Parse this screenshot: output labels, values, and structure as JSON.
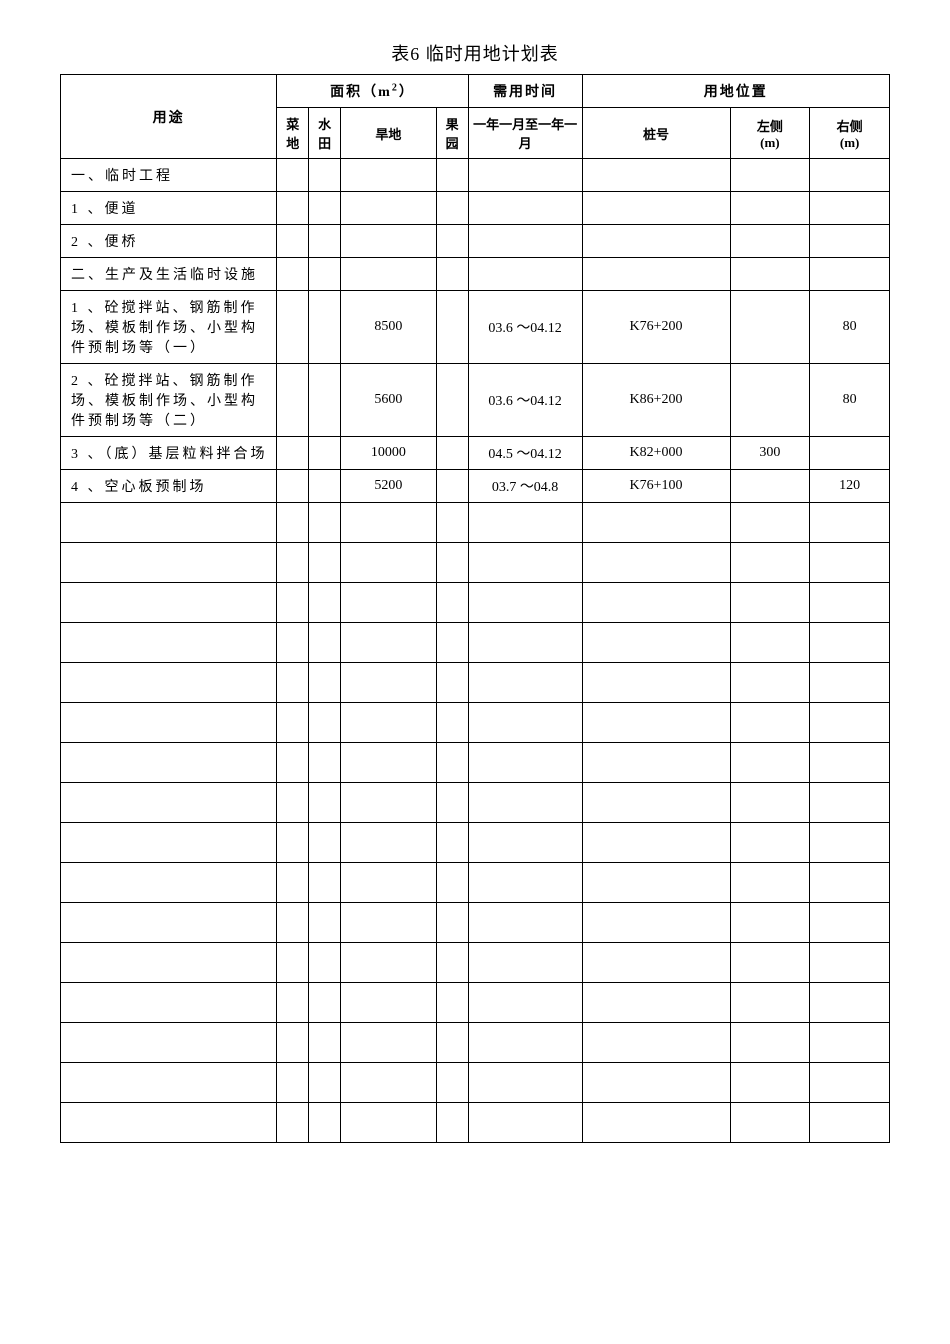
{
  "title": "表6 临时用地计划表",
  "headers": {
    "usage": "用途",
    "area": "面积（m²）",
    "time": "需用时间",
    "location": "用地位置",
    "cai": "菜地",
    "shui": "水田",
    "han": "旱地",
    "guo": "果园",
    "time_sub": "一年一月至一年一月",
    "pile": "桩号",
    "left": "左侧\n(m)",
    "right": "右侧\n(m)"
  },
  "rows": [
    {
      "usage": "一、临时工程"
    },
    {
      "usage": "1 、便道"
    },
    {
      "usage": "2 、便桥"
    },
    {
      "usage": "二、生产及生活临时设施"
    },
    {
      "usage": "1 、砼搅拌站、钢筋制作场、模板制作场、小型构件预制场等（一）",
      "han": "8500",
      "time": "03.6 ～04.12",
      "pile": "K76+200",
      "right": "80"
    },
    {
      "usage": "2 、砼搅拌站、钢筋制作场、模板制作场、小型构件预制场等（二）",
      "han": "5600",
      "time": "03.6 ～04.12",
      "pile": "K86+200",
      "right": "80"
    },
    {
      "usage": "3 、（底）基层粒料拌合场",
      "han": "10000",
      "time": "04.5 ～04.12",
      "pile": "K82+000",
      "left": "300"
    },
    {
      "usage": "4 、空心板预制场",
      "han": "5200",
      "time": "03.7 ～04.8",
      "pile": "K76+100",
      "right": "120"
    }
  ],
  "empty_row_count": 16
}
